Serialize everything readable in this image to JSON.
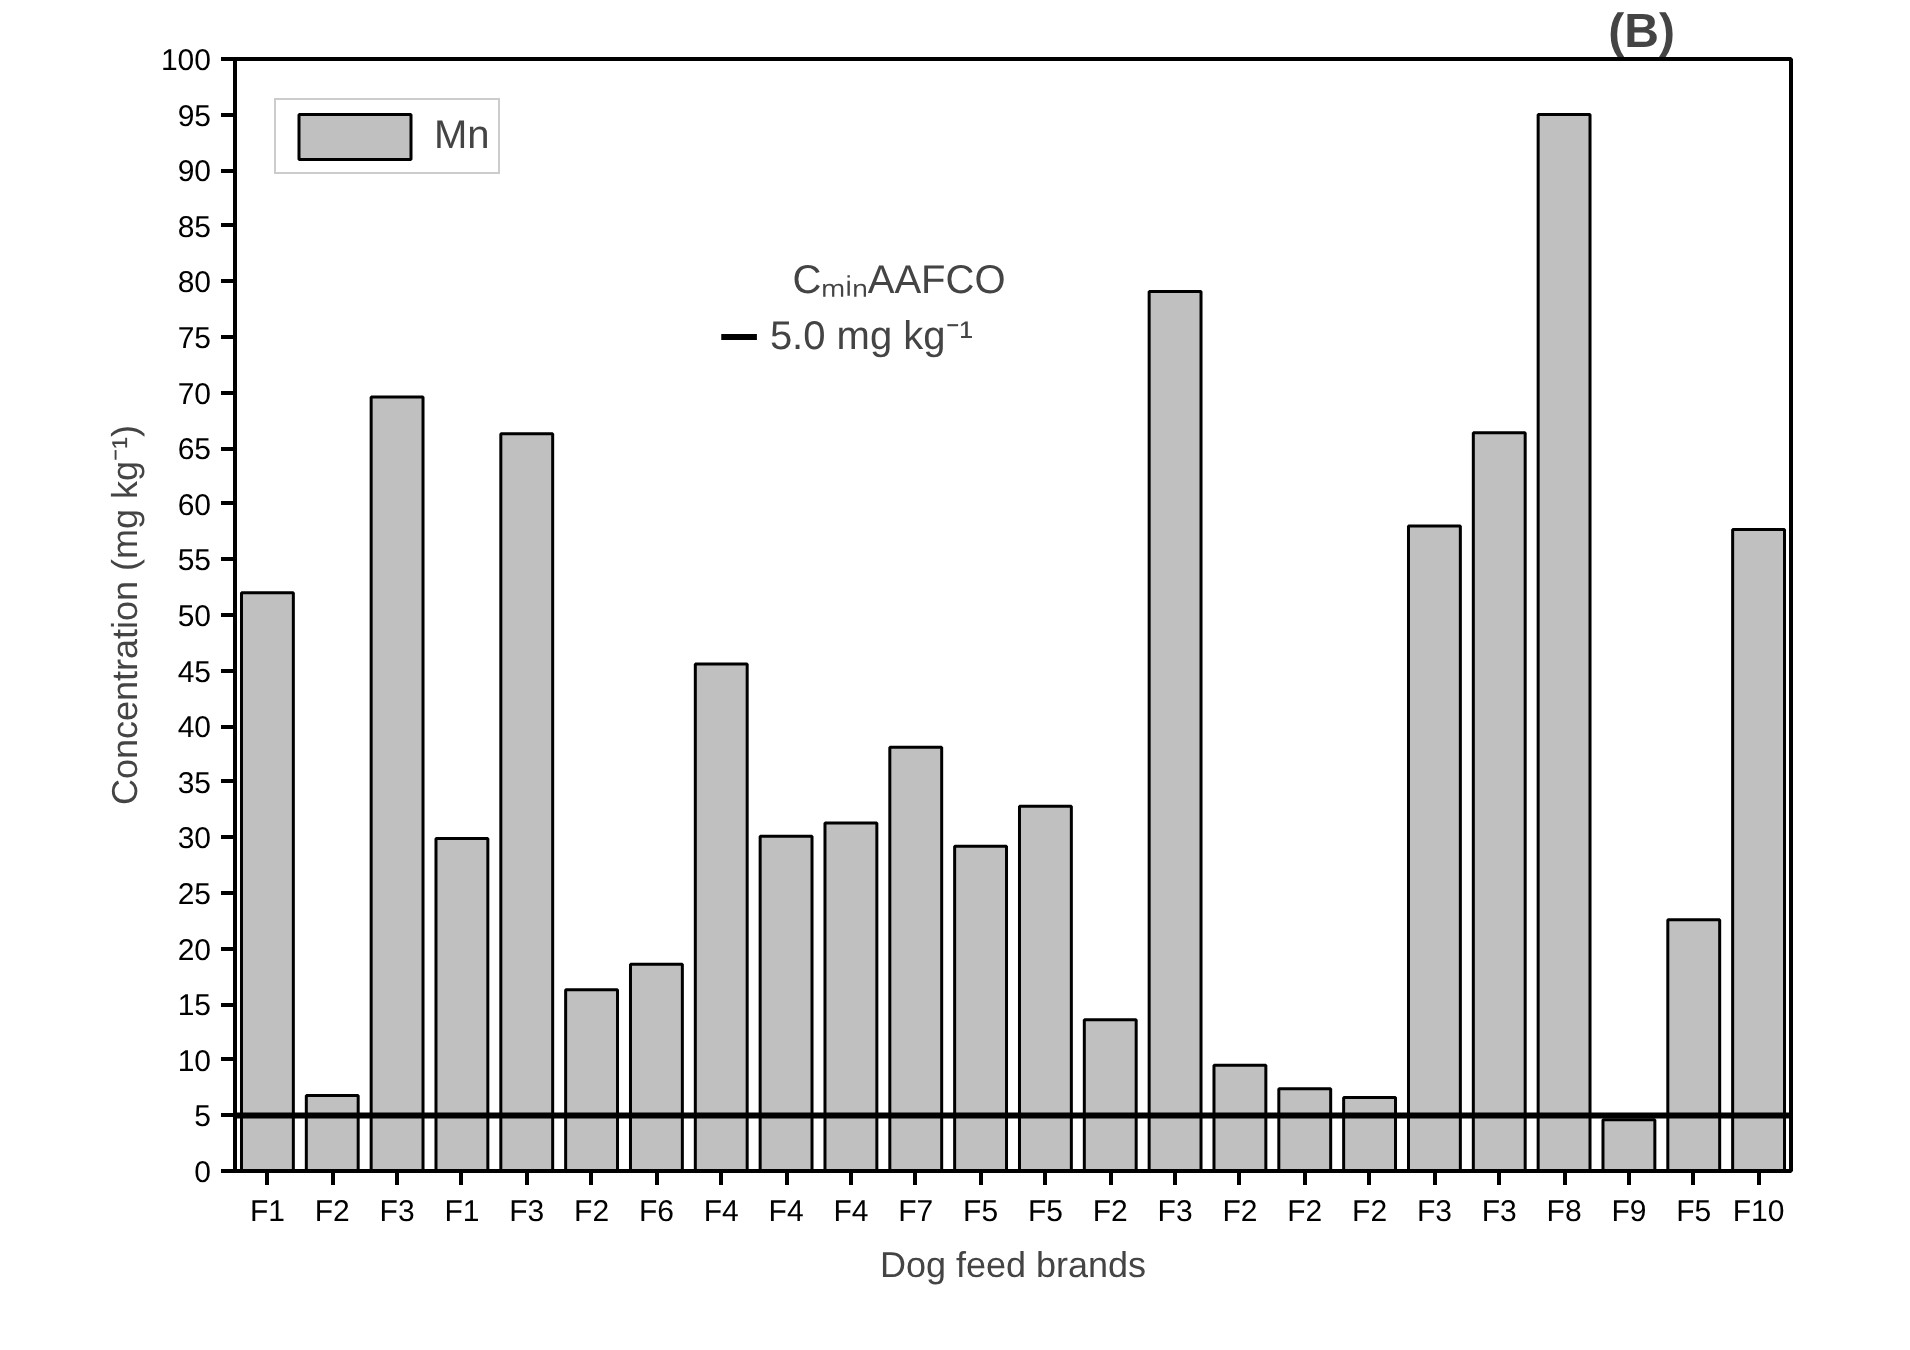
{
  "chart_data": {
    "type": "bar",
    "title": "(B)",
    "xlabel": "Dog feed brands",
    "ylabel": "Concentration (mg kg⁻¹)",
    "categories": [
      "F1",
      "F2",
      "F3",
      "F1",
      "F3",
      "F2",
      "F6",
      "F4",
      "F4",
      "F4",
      "F7",
      "F5",
      "F5",
      "F2",
      "F3",
      "F2",
      "F2",
      "F2",
      "F3",
      "F3",
      "F8",
      "F9",
      "F5",
      "F10"
    ],
    "series": [
      {
        "name": "Mn",
        "color": "#c0c0c0",
        "values": [
          52,
          6.8,
          69.6,
          29.9,
          66.3,
          16.3,
          18.6,
          45.6,
          30.1,
          31.3,
          38.1,
          29.2,
          32.8,
          13.6,
          79.1,
          9.5,
          7.4,
          6.6,
          58.0,
          66.4,
          95.0,
          4.6,
          22.6,
          57.7
        ]
      }
    ],
    "ylim": [
      0,
      100
    ],
    "yticks": [
      0,
      5,
      10,
      15,
      20,
      25,
      30,
      35,
      40,
      45,
      50,
      55,
      60,
      65,
      70,
      75,
      80,
      85,
      90,
      95,
      100
    ],
    "ref_lines": [
      {
        "axis": "y",
        "value": 5,
        "label": "5.0 mg kg⁻¹",
        "color": "#000000"
      }
    ],
    "annotations": [
      "CₘᵢₙAAFCO"
    ],
    "legend": "top left",
    "grid": false
  }
}
